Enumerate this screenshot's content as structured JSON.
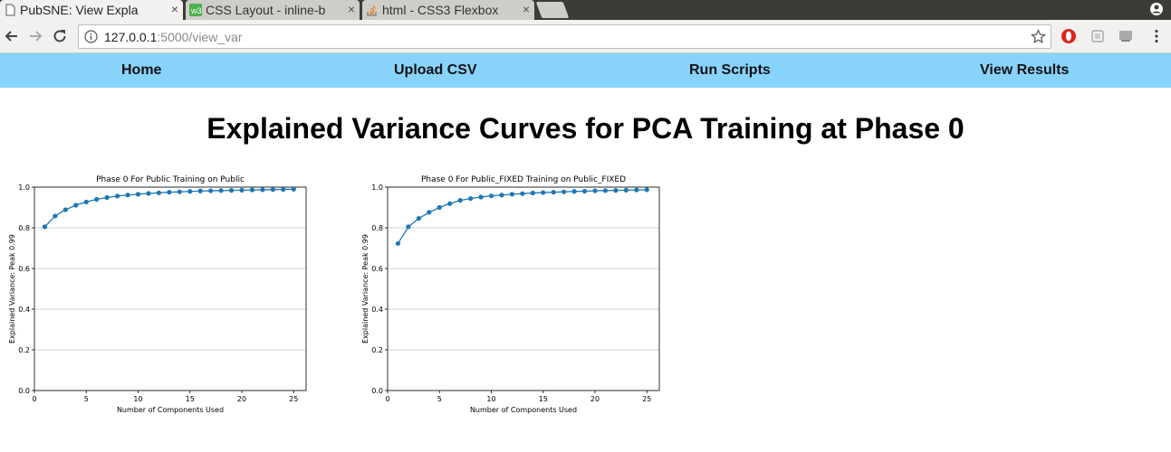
{
  "browser": {
    "tabs": [
      {
        "title": "PubSNE: View Expla",
        "active": true
      },
      {
        "title": "CSS Layout - inline-b",
        "active": false
      },
      {
        "title": "html - CSS3 Flexbox",
        "active": false
      }
    ],
    "close_glyph": "×",
    "url_host": "127.0.0.1",
    "url_rest": ":5000/view_var"
  },
  "nav": {
    "items": [
      {
        "label": "Home"
      },
      {
        "label": "Upload CSV"
      },
      {
        "label": "Run Scripts"
      },
      {
        "label": "View Results"
      }
    ]
  },
  "page": {
    "title": "Explained Variance Curves for PCA Training at Phase 0"
  },
  "chart_data": [
    {
      "type": "line",
      "title": "Phase 0 For Public Training on Public",
      "xlabel": "Number of Components Used",
      "ylabel": "Explained Variance: Peak 0.99",
      "xlim": [
        0,
        26.2
      ],
      "ylim": [
        0.0,
        1.0
      ],
      "xticks": [
        0,
        5,
        10,
        15,
        20,
        25
      ],
      "yticks": [
        0.0,
        0.2,
        0.4,
        0.6,
        0.8,
        1.0
      ],
      "grid": "horizontal",
      "color": "#1f77b4",
      "x": [
        1,
        2,
        3,
        4,
        5,
        6,
        7,
        8,
        9,
        10,
        11,
        12,
        13,
        14,
        15,
        16,
        17,
        18,
        19,
        20,
        21,
        22,
        23,
        24,
        25
      ],
      "y": [
        0.805,
        0.858,
        0.889,
        0.911,
        0.927,
        0.94,
        0.949,
        0.956,
        0.961,
        0.965,
        0.969,
        0.972,
        0.975,
        0.977,
        0.979,
        0.981,
        0.982,
        0.983,
        0.984,
        0.985,
        0.986,
        0.987,
        0.988,
        0.989,
        0.99
      ]
    },
    {
      "type": "line",
      "title": "Phase 0 For Public_FIXED Training on Public_FIXED",
      "xlabel": "Number of Components Used",
      "ylabel": "Explained Variance: Peak 0.99",
      "xlim": [
        0,
        26.2
      ],
      "ylim": [
        0.0,
        1.0
      ],
      "xticks": [
        0,
        5,
        10,
        15,
        20,
        25
      ],
      "yticks": [
        0.0,
        0.2,
        0.4,
        0.6,
        0.8,
        1.0
      ],
      "grid": "horizontal",
      "color": "#1f77b4",
      "x": [
        1,
        2,
        3,
        4,
        5,
        6,
        7,
        8,
        9,
        10,
        11,
        12,
        13,
        14,
        15,
        16,
        17,
        18,
        19,
        20,
        21,
        22,
        23,
        24,
        25
      ],
      "y": [
        0.723,
        0.805,
        0.846,
        0.876,
        0.9,
        0.919,
        0.935,
        0.944,
        0.951,
        0.957,
        0.961,
        0.965,
        0.968,
        0.971,
        0.973,
        0.975,
        0.977,
        0.979,
        0.98,
        0.982,
        0.983,
        0.984,
        0.985,
        0.986,
        0.987
      ]
    }
  ]
}
